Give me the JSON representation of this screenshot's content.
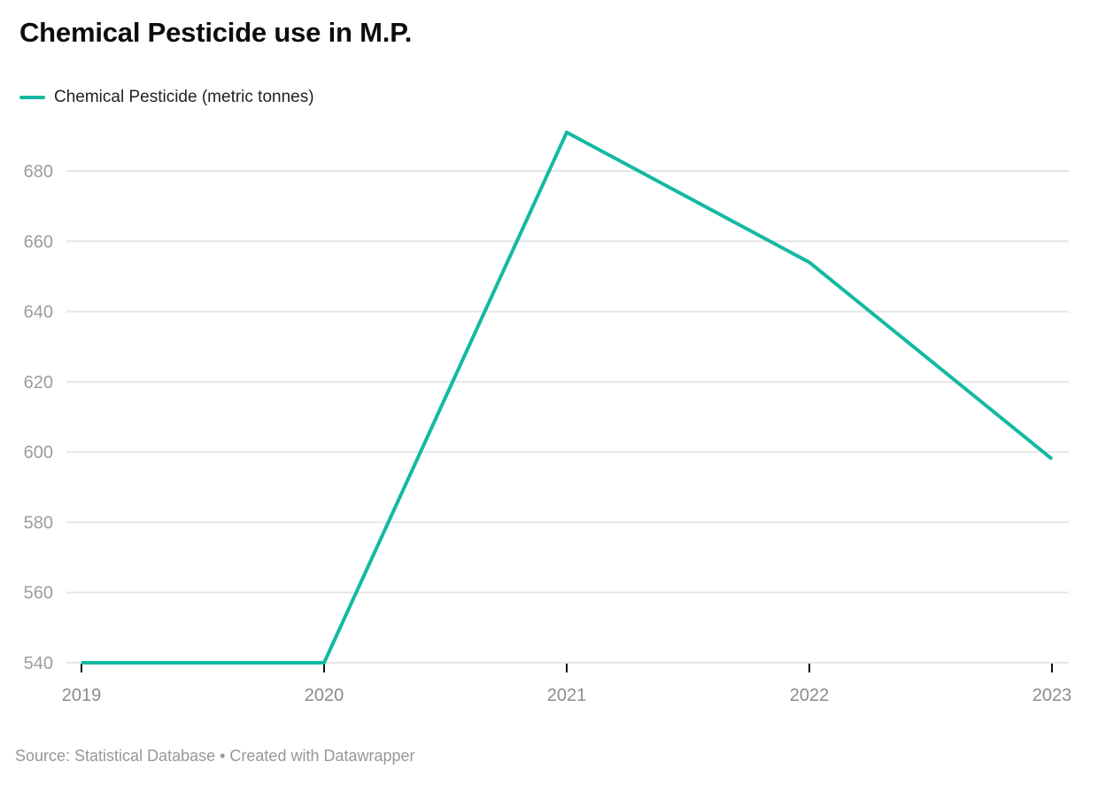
{
  "header": {
    "title": "Chemical Pesticide use in M.P."
  },
  "legend": {
    "label": "Chemical Pesticide (metric tonnes)",
    "swatch_color": "#14b9a2"
  },
  "chart_data": {
    "type": "line",
    "title": "Chemical Pesticide use in M.P.",
    "x": [
      "2019",
      "2020",
      "2021",
      "2022",
      "2023"
    ],
    "series": [
      {
        "name": "Chemical Pesticide (metric tonnes)",
        "color": "#14b9a2",
        "values": [
          540,
          540,
          691,
          654,
          598
        ]
      }
    ],
    "xlabel": "",
    "ylabel": "",
    "y_ticks": [
      540,
      560,
      580,
      600,
      620,
      640,
      660,
      680
    ],
    "ylim": [
      540,
      695
    ],
    "grid": "horizontal",
    "legend_position": "top-left",
    "colors": {
      "gridline": "#e6e6e6",
      "y_tick_label": "#9c9c9c",
      "x_tick_label": "#8c8c8c",
      "axis_tick": "#111111"
    }
  },
  "footer": {
    "source": "Source: Statistical Database • Created with Datawrapper"
  }
}
